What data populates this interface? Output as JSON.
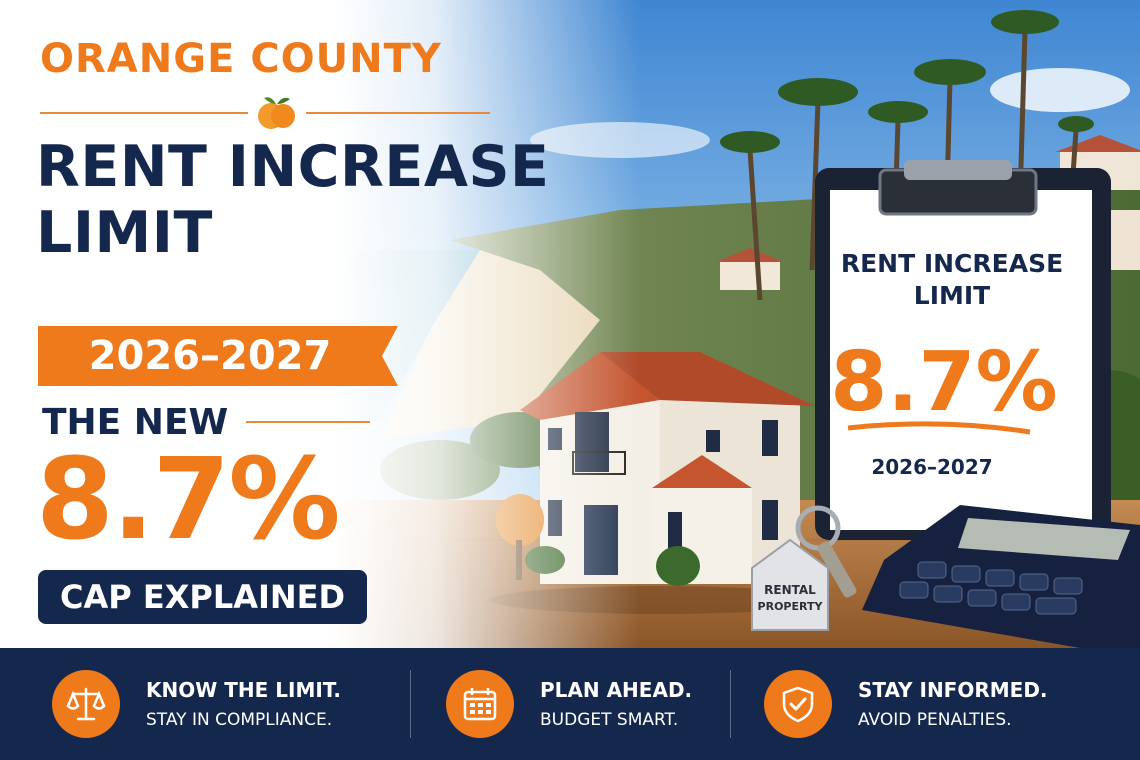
{
  "header": {
    "county": "ORANGE COUNTY",
    "title_line1": "RENT INCREASE",
    "title_line2": "LIMIT",
    "years": "2026–2027",
    "the_new": "THE NEW",
    "percent": "8.7%",
    "cap_explained": "CAP EXPLAINED"
  },
  "clipboard": {
    "line1": "RENT INCREASE",
    "line2": "LIMIT",
    "percent": "8.7%",
    "years": "2026–2027"
  },
  "keytag": {
    "line1": "RENTAL",
    "line2": "PROPERTY"
  },
  "features": [
    {
      "icon": "scales-icon",
      "title": "KNOW THE LIMIT.",
      "subtitle": "STAY IN COMPLIANCE."
    },
    {
      "icon": "calendar-icon",
      "title": "PLAN AHEAD.",
      "subtitle": "BUDGET SMART."
    },
    {
      "icon": "shield-check-icon",
      "title": "STAY INFORMED.",
      "subtitle": "AVOID PENALTIES."
    }
  ],
  "colors": {
    "navy": "#14284d",
    "orange": "#ee7a1c",
    "sky": "#7fb6e8",
    "wood": "#b07340"
  }
}
